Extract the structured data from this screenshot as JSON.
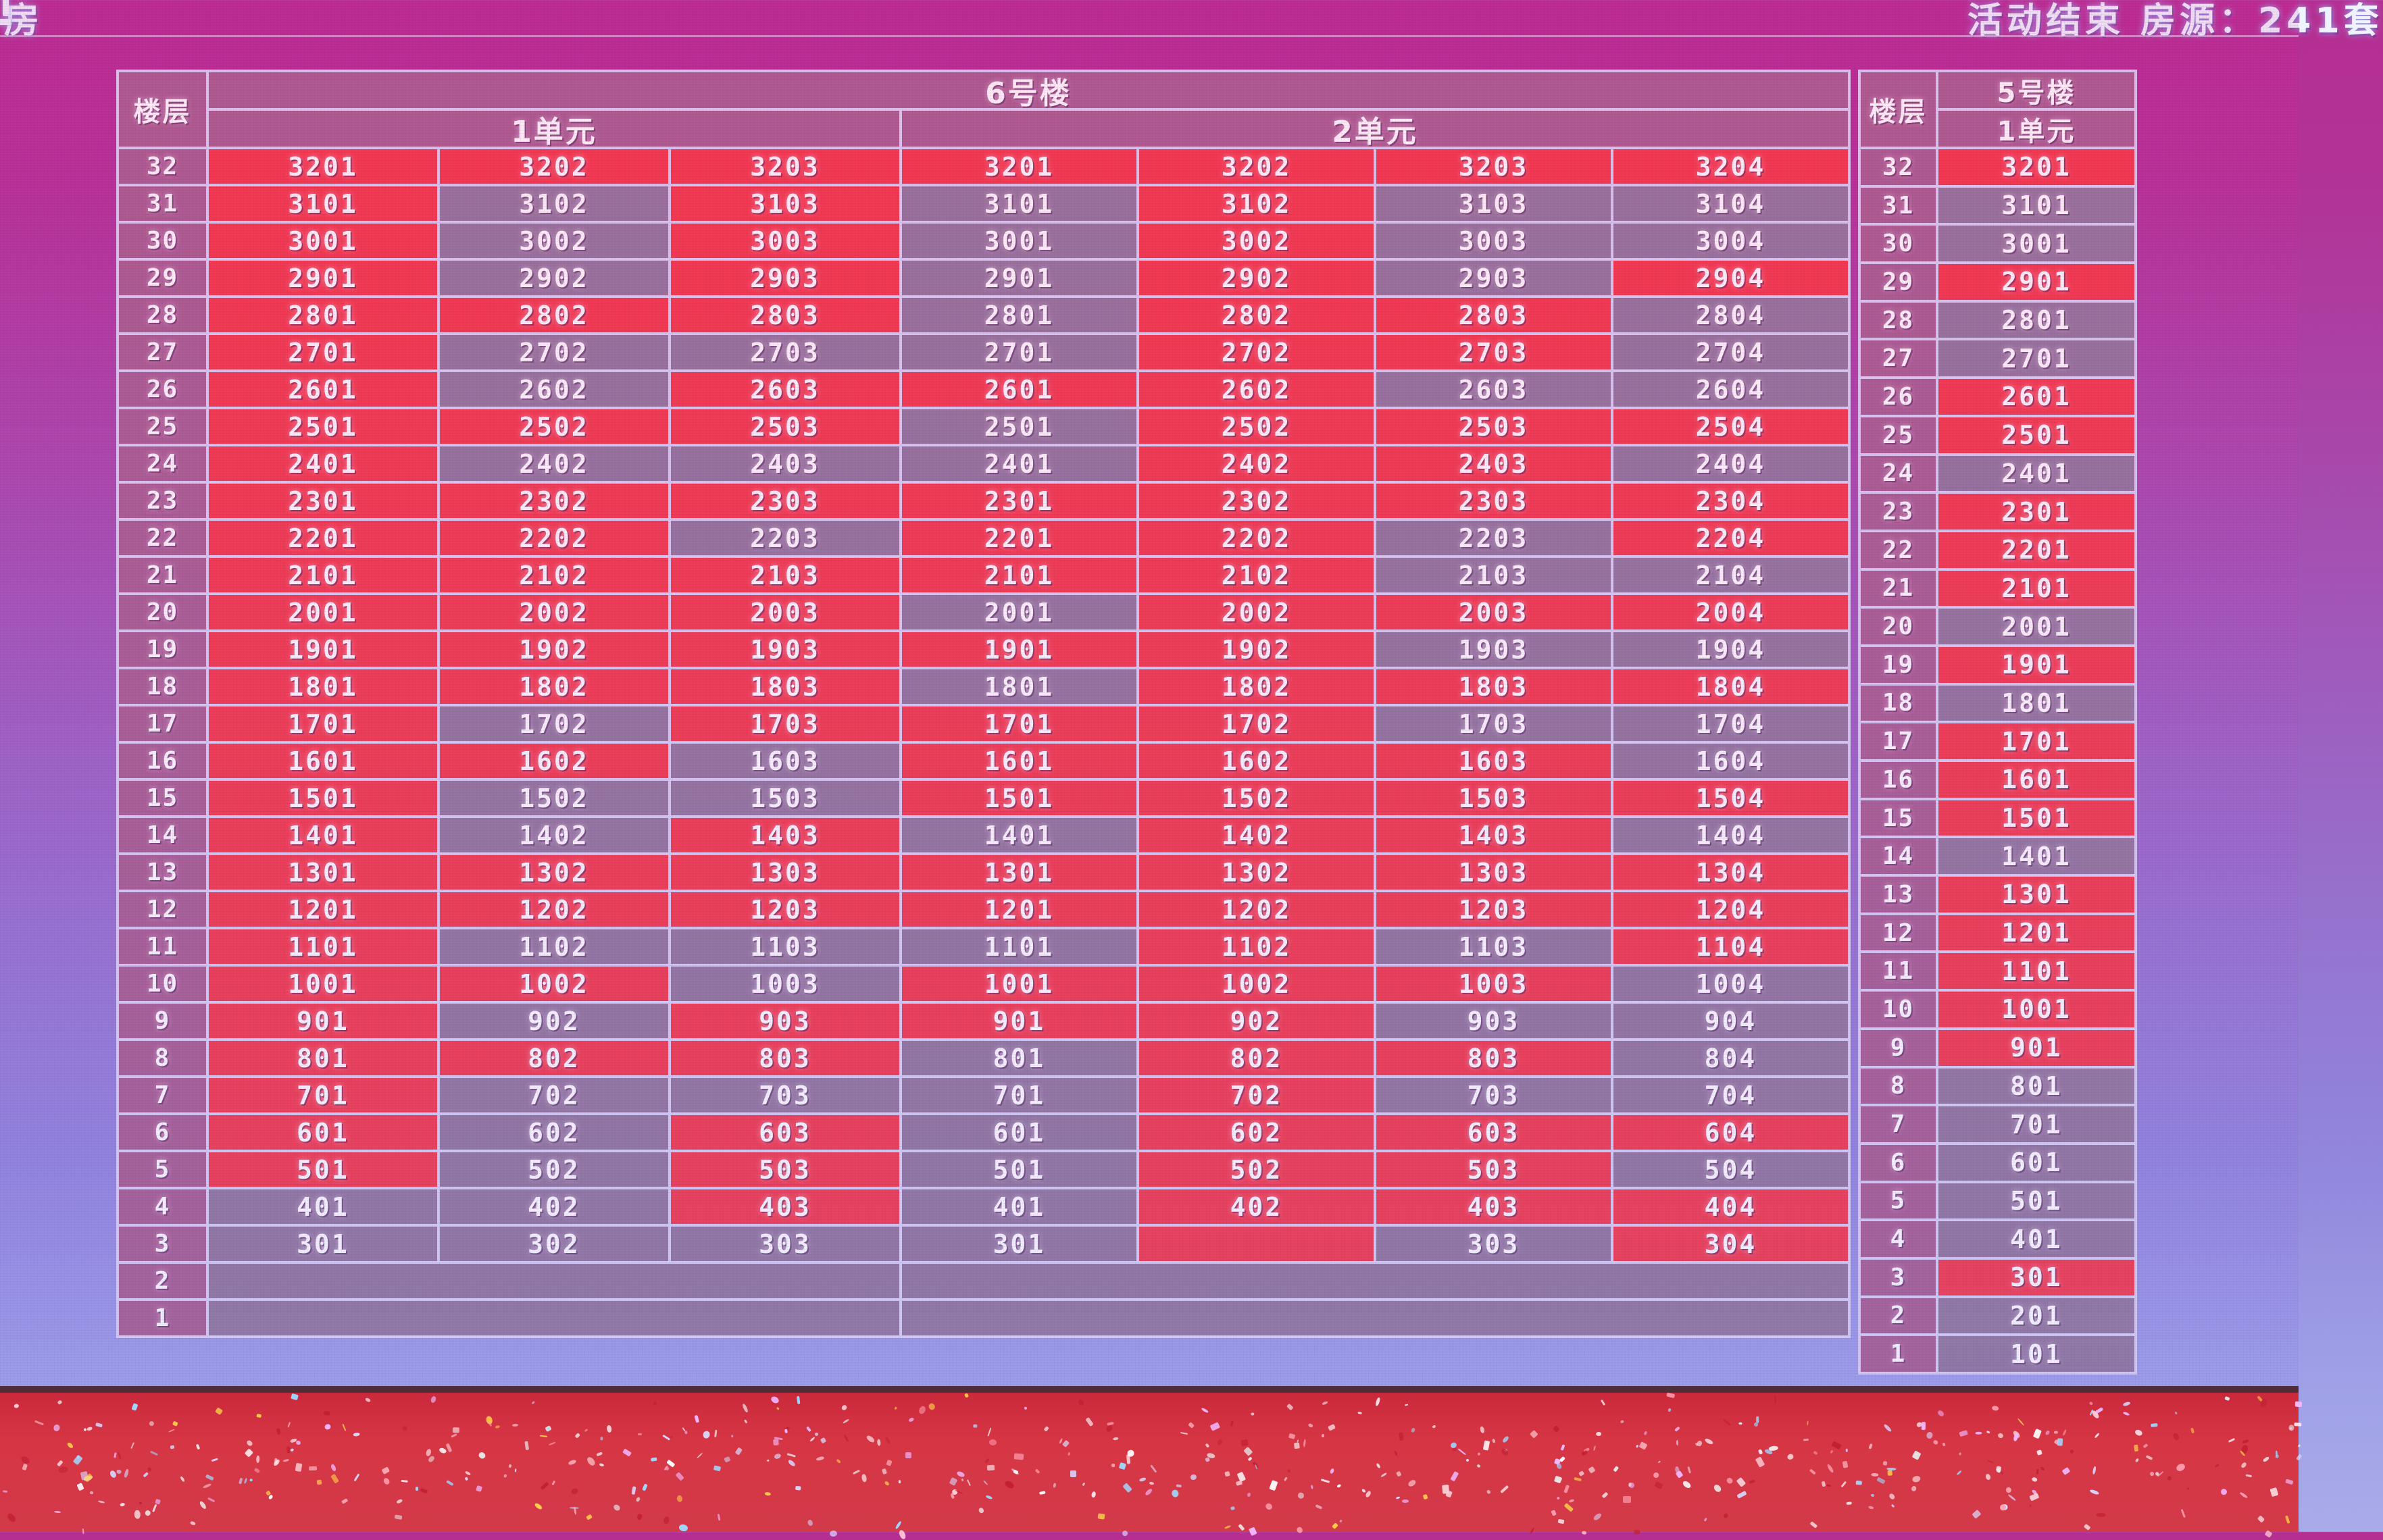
{
  "top_bar": {
    "left_text": "房",
    "right_text": "活动结束 房源：241套"
  },
  "colors": {
    "cell_red": "rgba(242,52,66,0.96)",
    "cell_dark": "rgba(66,16,52,0.47)",
    "cell_header": "rgba(128,2,58,0.55)",
    "grid_line": "#d8d3f5",
    "carpet_red": "#d63644",
    "top_text": "#eef3ff"
  },
  "legend": {
    "red_means": "red-cell",
    "dark_means": "dark-cell"
  },
  "building6": {
    "title": "6号楼",
    "floor_header": "楼层",
    "unit1_label": "1单元",
    "unit2_label": "2单元",
    "rows": [
      {
        "floor": "32",
        "u1": [
          "3201:r",
          "3202:r",
          "3203:r"
        ],
        "u2": [
          "3201:r",
          "3202:r",
          "3203:r",
          "3204:r"
        ]
      },
      {
        "floor": "31",
        "u1": [
          "3101:r",
          "3102:d",
          "3103:r"
        ],
        "u2": [
          "3101:d",
          "3102:r",
          "3103:d",
          "3104:d"
        ]
      },
      {
        "floor": "30",
        "u1": [
          "3001:r",
          "3002:d",
          "3003:r"
        ],
        "u2": [
          "3001:d",
          "3002:r",
          "3003:d",
          "3004:d"
        ]
      },
      {
        "floor": "29",
        "u1": [
          "2901:r",
          "2902:d",
          "2903:r"
        ],
        "u2": [
          "2901:d",
          "2902:r",
          "2903:d",
          "2904:r"
        ]
      },
      {
        "floor": "28",
        "u1": [
          "2801:r",
          "2802:r",
          "2803:r"
        ],
        "u2": [
          "2801:d",
          "2802:r",
          "2803:r",
          "2804:d"
        ]
      },
      {
        "floor": "27",
        "u1": [
          "2701:r",
          "2702:d",
          "2703:d"
        ],
        "u2": [
          "2701:d",
          "2702:r",
          "2703:r",
          "2704:d"
        ]
      },
      {
        "floor": "26",
        "u1": [
          "2601:r",
          "2602:d",
          "2603:r"
        ],
        "u2": [
          "2601:r",
          "2602:r",
          "2603:d",
          "2604:d"
        ]
      },
      {
        "floor": "25",
        "u1": [
          "2501:r",
          "2502:r",
          "2503:r"
        ],
        "u2": [
          "2501:d",
          "2502:r",
          "2503:r",
          "2504:r"
        ]
      },
      {
        "floor": "24",
        "u1": [
          "2401:r",
          "2402:d",
          "2403:d"
        ],
        "u2": [
          "2401:d",
          "2402:r",
          "2403:r",
          "2404:d"
        ]
      },
      {
        "floor": "23",
        "u1": [
          "2301:r",
          "2302:r",
          "2303:r"
        ],
        "u2": [
          "2301:r",
          "2302:r",
          "2303:r",
          "2304:r"
        ]
      },
      {
        "floor": "22",
        "u1": [
          "2201:r",
          "2202:r",
          "2203:d"
        ],
        "u2": [
          "2201:r",
          "2202:r",
          "2203:d",
          "2204:r"
        ]
      },
      {
        "floor": "21",
        "u1": [
          "2101:r",
          "2102:r",
          "2103:r"
        ],
        "u2": [
          "2101:r",
          "2102:r",
          "2103:d",
          "2104:d"
        ]
      },
      {
        "floor": "20",
        "u1": [
          "2001:r",
          "2002:r",
          "2003:r"
        ],
        "u2": [
          "2001:d",
          "2002:r",
          "2003:r",
          "2004:r"
        ]
      },
      {
        "floor": "19",
        "u1": [
          "1901:r",
          "1902:r",
          "1903:r"
        ],
        "u2": [
          "1901:r",
          "1902:r",
          "1903:d",
          "1904:d"
        ]
      },
      {
        "floor": "18",
        "u1": [
          "1801:r",
          "1802:r",
          "1803:r"
        ],
        "u2": [
          "1801:d",
          "1802:r",
          "1803:r",
          "1804:r"
        ]
      },
      {
        "floor": "17",
        "u1": [
          "1701:r",
          "1702:d",
          "1703:r"
        ],
        "u2": [
          "1701:r",
          "1702:r",
          "1703:d",
          "1704:d"
        ]
      },
      {
        "floor": "16",
        "u1": [
          "1601:r",
          "1602:r",
          "1603:d"
        ],
        "u2": [
          "1601:r",
          "1602:r",
          "1603:r",
          "1604:d"
        ]
      },
      {
        "floor": "15",
        "u1": [
          "1501:r",
          "1502:d",
          "1503:d"
        ],
        "u2": [
          "1501:r",
          "1502:r",
          "1503:r",
          "1504:r"
        ]
      },
      {
        "floor": "14",
        "u1": [
          "1401:r",
          "1402:d",
          "1403:r"
        ],
        "u2": [
          "1401:d",
          "1402:r",
          "1403:r",
          "1404:d"
        ]
      },
      {
        "floor": "13",
        "u1": [
          "1301:r",
          "1302:r",
          "1303:r"
        ],
        "u2": [
          "1301:r",
          "1302:r",
          "1303:r",
          "1304:r"
        ]
      },
      {
        "floor": "12",
        "u1": [
          "1201:r",
          "1202:r",
          "1203:r"
        ],
        "u2": [
          "1201:r",
          "1202:r",
          "1203:r",
          "1204:r"
        ]
      },
      {
        "floor": "11",
        "u1": [
          "1101:r",
          "1102:d",
          "1103:d"
        ],
        "u2": [
          "1101:d",
          "1102:r",
          "1103:d",
          "1104:r"
        ]
      },
      {
        "floor": "10",
        "u1": [
          "1001:r",
          "1002:r",
          "1003:d"
        ],
        "u2": [
          "1001:r",
          "1002:r",
          "1003:r",
          "1004:d"
        ]
      },
      {
        "floor": "9",
        "u1": [
          "901:r",
          "902:d",
          "903:r"
        ],
        "u2": [
          "901:r",
          "902:r",
          "903:d",
          "904:d"
        ]
      },
      {
        "floor": "8",
        "u1": [
          "801:r",
          "802:r",
          "803:r"
        ],
        "u2": [
          "801:d",
          "802:r",
          "803:r",
          "804:d"
        ]
      },
      {
        "floor": "7",
        "u1": [
          "701:r",
          "702:d",
          "703:d"
        ],
        "u2": [
          "701:d",
          "702:r",
          "703:d",
          "704:d"
        ]
      },
      {
        "floor": "6",
        "u1": [
          "601:r",
          "602:d",
          "603:r"
        ],
        "u2": [
          "601:d",
          "602:r",
          "603:r",
          "604:r"
        ]
      },
      {
        "floor": "5",
        "u1": [
          "501:r",
          "502:d",
          "503:r"
        ],
        "u2": [
          "501:d",
          "502:r",
          "503:r",
          "504:d"
        ]
      },
      {
        "floor": "4",
        "u1": [
          "401:d",
          "402:d",
          "403:r"
        ],
        "u2": [
          "401:d",
          "402:r",
          "403:r",
          "404:r"
        ]
      },
      {
        "floor": "3",
        "u1": [
          "301:d",
          "302:d",
          "303:d"
        ],
        "u2": [
          "301:d",
          ":r",
          "303:d",
          "304:r"
        ]
      },
      {
        "floor": "2",
        "u1": null,
        "u2": null
      },
      {
        "floor": "1",
        "u1": null,
        "u2": null
      }
    ]
  },
  "building5": {
    "title": "5号楼",
    "floor_header": "楼层",
    "unit1_label": "1单元",
    "rows": [
      {
        "floor": "32",
        "cell": "3201:r"
      },
      {
        "floor": "31",
        "cell": "3101:d"
      },
      {
        "floor": "30",
        "cell": "3001:d"
      },
      {
        "floor": "29",
        "cell": "2901:r"
      },
      {
        "floor": "28",
        "cell": "2801:d"
      },
      {
        "floor": "27",
        "cell": "2701:d"
      },
      {
        "floor": "26",
        "cell": "2601:r"
      },
      {
        "floor": "25",
        "cell": "2501:r"
      },
      {
        "floor": "24",
        "cell": "2401:d"
      },
      {
        "floor": "23",
        "cell": "2301:r"
      },
      {
        "floor": "22",
        "cell": "2201:r"
      },
      {
        "floor": "21",
        "cell": "2101:r"
      },
      {
        "floor": "20",
        "cell": "2001:d"
      },
      {
        "floor": "19",
        "cell": "1901:r"
      },
      {
        "floor": "18",
        "cell": "1801:d"
      },
      {
        "floor": "17",
        "cell": "1701:r"
      },
      {
        "floor": "16",
        "cell": "1601:r"
      },
      {
        "floor": "15",
        "cell": "1501:r"
      },
      {
        "floor": "14",
        "cell": "1401:d"
      },
      {
        "floor": "13",
        "cell": "1301:r"
      },
      {
        "floor": "12",
        "cell": "1201:r"
      },
      {
        "floor": "11",
        "cell": "1101:r"
      },
      {
        "floor": "10",
        "cell": "1001:r"
      },
      {
        "floor": "9",
        "cell": "901:r"
      },
      {
        "floor": "8",
        "cell": "801:d"
      },
      {
        "floor": "7",
        "cell": "701:d"
      },
      {
        "floor": "6",
        "cell": "601:d"
      },
      {
        "floor": "5",
        "cell": "501:d"
      },
      {
        "floor": "4",
        "cell": "401:d"
      },
      {
        "floor": "3",
        "cell": "301:r"
      },
      {
        "floor": "2",
        "cell": "201:d"
      },
      {
        "floor": "1",
        "cell": "101:d"
      }
    ]
  }
}
